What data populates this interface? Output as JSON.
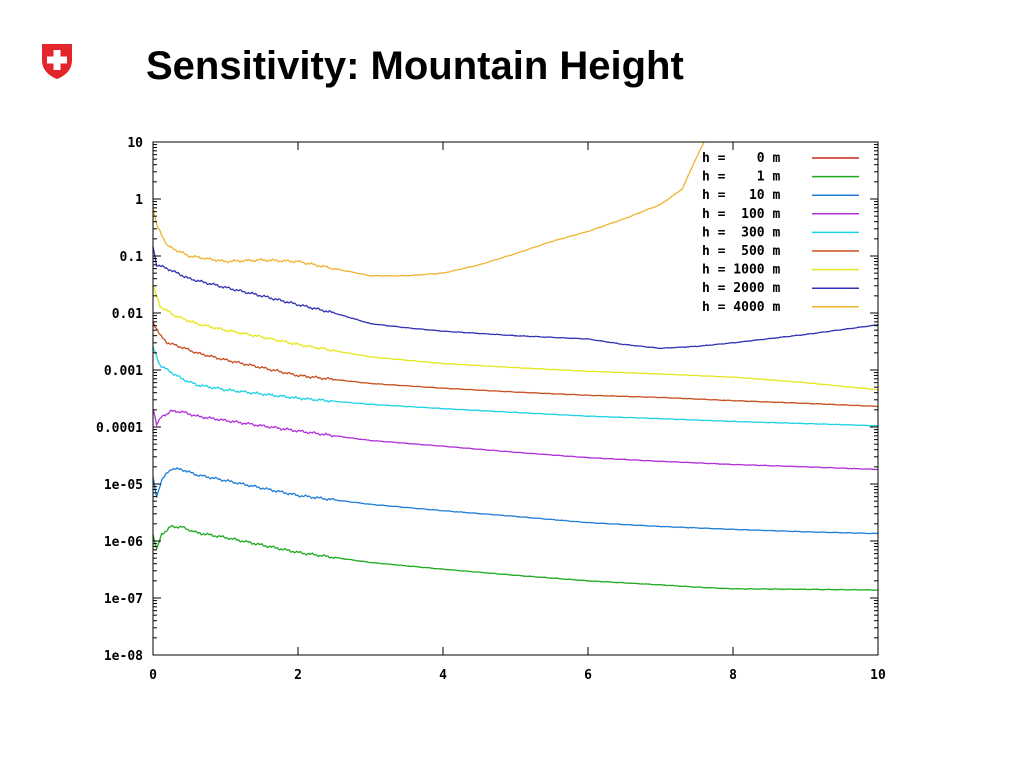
{
  "slide": {
    "title": "Sensitivity: Mountain Height",
    "logo": {
      "icon": "swiss-cross-shield-icon",
      "color": "#e3262b"
    }
  },
  "chart_data": {
    "type": "line",
    "title": "",
    "xlabel": "",
    "ylabel": "",
    "xlim": [
      0,
      10
    ],
    "ylim": [
      1e-08,
      10
    ],
    "yscale": "log",
    "grid": false,
    "legend_position": "top-right",
    "x_ticks": [
      0,
      2,
      4,
      6,
      8,
      10
    ],
    "x_tick_labels": [
      "0",
      "2",
      "4",
      "6",
      "8",
      "10"
    ],
    "y_ticks": [
      10,
      1,
      0.1,
      0.01,
      0.001,
      0.0001,
      1e-05,
      1e-06,
      1e-07,
      1e-08
    ],
    "y_tick_labels": [
      "10",
      "1",
      "0.1",
      "0.01",
      "0.001",
      "0.0001",
      "1e-05",
      "1e-06",
      "1e-07",
      "1e-08"
    ],
    "series": [
      {
        "name": "h =    0 m",
        "color": "#c8281e",
        "points": []
      },
      {
        "name": "h =    1 m",
        "color": "#1faa1f",
        "points": [
          [
            0.0,
            1.3e-06
          ],
          [
            0.05,
            7e-07
          ],
          [
            0.12,
            1.3e-06
          ],
          [
            0.25,
            1.8e-06
          ],
          [
            0.4,
            1.75e-06
          ],
          [
            0.6,
            1.4e-06
          ],
          [
            1.0,
            1.15e-06
          ],
          [
            1.5,
            8.5e-07
          ],
          [
            2.0,
            6.3e-07
          ],
          [
            3.0,
            4.2e-07
          ],
          [
            4.0,
            3.2e-07
          ],
          [
            5.0,
            2.5e-07
          ],
          [
            6.0,
            2e-07
          ],
          [
            7.0,
            1.7e-07
          ],
          [
            7.5,
            1.55e-07
          ],
          [
            8.0,
            1.45e-07
          ],
          [
            9.0,
            1.42e-07
          ],
          [
            10.0,
            1.38e-07
          ]
        ]
      },
      {
        "name": "h =   10 m",
        "color": "#1f7fd6",
        "points": [
          [
            0.0,
            1.3e-05
          ],
          [
            0.05,
            6e-06
          ],
          [
            0.12,
            1.2e-05
          ],
          [
            0.25,
            1.85e-05
          ],
          [
            0.4,
            1.8e-05
          ],
          [
            0.6,
            1.45e-05
          ],
          [
            1.0,
            1.15e-05
          ],
          [
            1.5,
            8.5e-06
          ],
          [
            2.0,
            6.3e-06
          ],
          [
            3.0,
            4.4e-06
          ],
          [
            4.0,
            3.4e-06
          ],
          [
            5.0,
            2.7e-06
          ],
          [
            6.0,
            2.1e-06
          ],
          [
            7.0,
            1.8e-06
          ],
          [
            8.0,
            1.6e-06
          ],
          [
            9.0,
            1.45e-06
          ],
          [
            10.0,
            1.35e-06
          ]
        ]
      },
      {
        "name": "h =  100 m",
        "color": "#b030d8",
        "points": [
          [
            0.0,
            0.00022
          ],
          [
            0.05,
            0.00011
          ],
          [
            0.12,
            0.00015
          ],
          [
            0.25,
            0.00019
          ],
          [
            0.4,
            0.000185
          ],
          [
            0.6,
            0.000155
          ],
          [
            1.0,
            0.00013
          ],
          [
            1.5,
            0.000105
          ],
          [
            2.0,
            8.5e-05
          ],
          [
            3.0,
            5.8e-05
          ],
          [
            4.0,
            4.6e-05
          ],
          [
            5.0,
            3.6e-05
          ],
          [
            6.0,
            2.9e-05
          ],
          [
            7.0,
            2.5e-05
          ],
          [
            8.0,
            2.2e-05
          ],
          [
            9.0,
            2e-05
          ],
          [
            10.0,
            1.8e-05
          ]
        ]
      },
      {
        "name": "h =  300 m",
        "color": "#1ed2e6",
        "points": [
          [
            0.0,
            0.0025
          ],
          [
            0.1,
            0.0012
          ],
          [
            0.2,
            0.001
          ],
          [
            0.4,
            0.0007
          ],
          [
            0.6,
            0.00055
          ],
          [
            1.0,
            0.00045
          ],
          [
            1.5,
            0.00038
          ],
          [
            2.0,
            0.00032
          ],
          [
            3.0,
            0.00025
          ],
          [
            4.0,
            0.00021
          ],
          [
            5.0,
            0.00018
          ],
          [
            6.0,
            0.000155
          ],
          [
            7.0,
            0.00014
          ],
          [
            8.0,
            0.000125
          ],
          [
            9.0,
            0.000115
          ],
          [
            10.0,
            0.000105
          ]
        ]
      },
      {
        "name": "h =  500 m",
        "color": "#c8501e",
        "points": [
          [
            0.0,
            0.007
          ],
          [
            0.1,
            0.004
          ],
          [
            0.2,
            0.003
          ],
          [
            0.4,
            0.0025
          ],
          [
            0.6,
            0.002
          ],
          [
            1.0,
            0.0015
          ],
          [
            1.5,
            0.0011
          ],
          [
            2.0,
            0.0008
          ],
          [
            3.0,
            0.00058
          ],
          [
            4.0,
            0.00048
          ],
          [
            5.0,
            0.00041
          ],
          [
            6.0,
            0.00036
          ],
          [
            7.0,
            0.00033
          ],
          [
            8.0,
            0.00029
          ],
          [
            9.0,
            0.00026
          ],
          [
            10.0,
            0.00023
          ]
        ]
      },
      {
        "name": "h = 1000 m",
        "color": "#e6e61e",
        "points": [
          [
            0.0,
            0.03
          ],
          [
            0.1,
            0.013
          ],
          [
            0.3,
            0.009
          ],
          [
            0.6,
            0.0065
          ],
          [
            1.0,
            0.005
          ],
          [
            1.5,
            0.0038
          ],
          [
            2.0,
            0.0028
          ],
          [
            3.0,
            0.0017
          ],
          [
            4.0,
            0.0013
          ],
          [
            5.0,
            0.0011
          ],
          [
            6.0,
            0.00095
          ],
          [
            7.0,
            0.00085
          ],
          [
            8.0,
            0.00075
          ],
          [
            9.0,
            0.0006
          ],
          [
            10.0,
            0.00045
          ]
        ]
      },
      {
        "name": "h = 2000 m",
        "color": "#3232b4",
        "points": [
          [
            0.0,
            0.15
          ],
          [
            0.05,
            0.07
          ],
          [
            0.2,
            0.06
          ],
          [
            0.5,
            0.04
          ],
          [
            1.0,
            0.028
          ],
          [
            1.5,
            0.02
          ],
          [
            2.0,
            0.014
          ],
          [
            2.5,
            0.01
          ],
          [
            3.0,
            0.0065
          ],
          [
            3.5,
            0.0055
          ],
          [
            4.0,
            0.0048
          ],
          [
            5.0,
            0.004
          ],
          [
            6.0,
            0.0035
          ],
          [
            6.5,
            0.0028
          ],
          [
            7.0,
            0.0024
          ],
          [
            7.5,
            0.0026
          ],
          [
            8.0,
            0.003
          ],
          [
            9.0,
            0.0042
          ],
          [
            10.0,
            0.0062
          ]
        ]
      },
      {
        "name": "h = 4000 m",
        "color": "#f0b432",
        "points": [
          [
            0.0,
            0.7
          ],
          [
            0.05,
            0.35
          ],
          [
            0.2,
            0.15
          ],
          [
            0.5,
            0.1
          ],
          [
            1.0,
            0.08
          ],
          [
            1.5,
            0.085
          ],
          [
            2.0,
            0.08
          ],
          [
            2.5,
            0.06
          ],
          [
            3.0,
            0.045
          ],
          [
            3.5,
            0.045
          ],
          [
            4.0,
            0.05
          ],
          [
            4.5,
            0.07
          ],
          [
            5.0,
            0.11
          ],
          [
            5.5,
            0.18
          ],
          [
            6.0,
            0.27
          ],
          [
            6.5,
            0.45
          ],
          [
            7.0,
            0.8
          ],
          [
            7.3,
            1.5
          ],
          [
            7.45,
            4
          ],
          [
            7.6,
            10
          ]
        ]
      }
    ]
  }
}
